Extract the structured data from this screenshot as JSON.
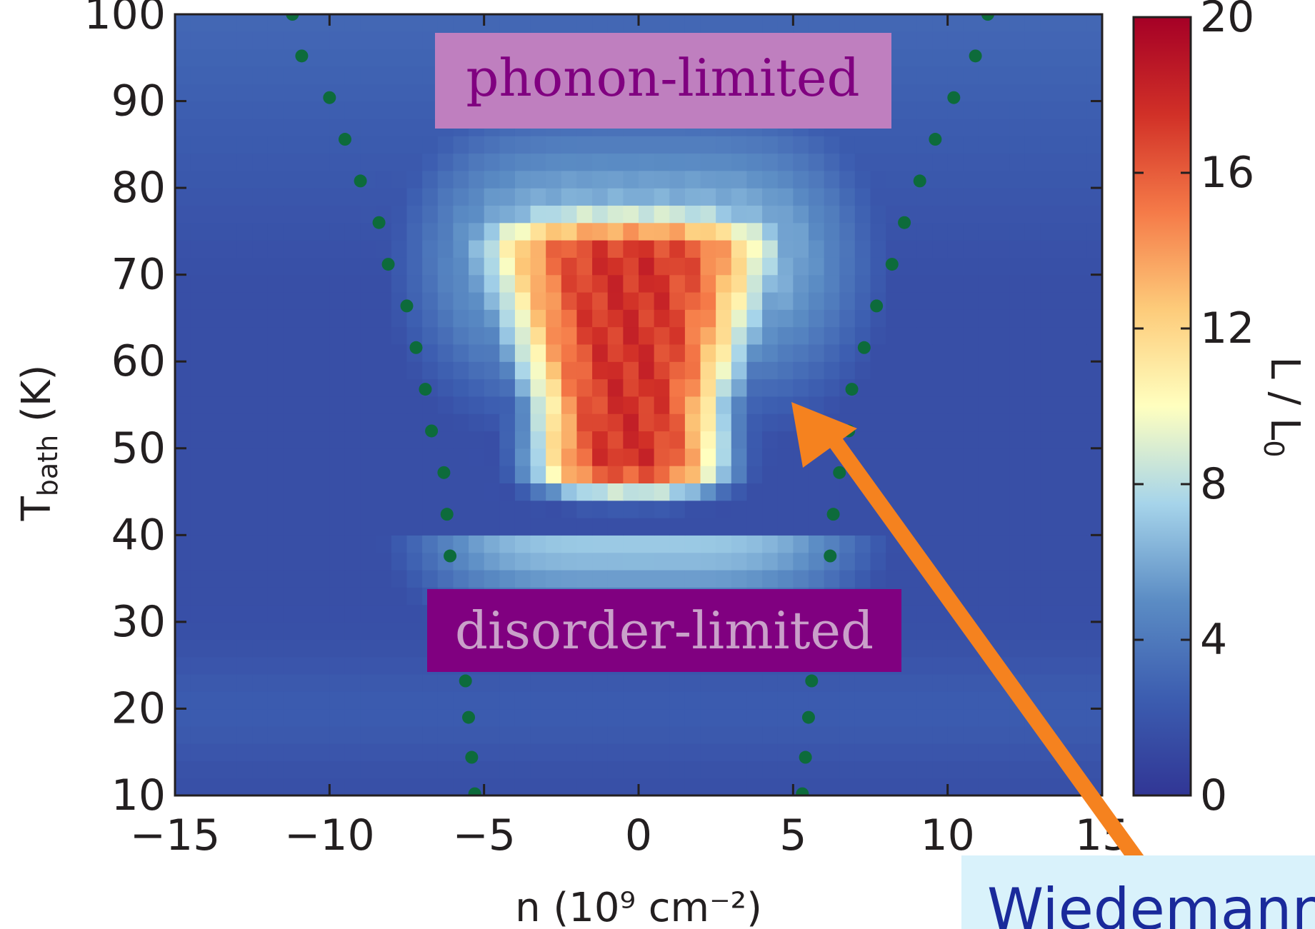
{
  "chart_data": {
    "type": "heatmap",
    "xlabel": "n (10⁹ cm⁻²)",
    "ylabel": "T_bath (K)",
    "ylabel_main": "T",
    "ylabel_sub": "bath",
    "ylabel_rest": " (K)",
    "colorbar_label": "L / L₀",
    "colorbar_label_main": "L / L",
    "colorbar_label_sub": "0",
    "xlim": [
      -15,
      15
    ],
    "ylim": [
      10,
      100
    ],
    "clim": [
      0,
      20
    ],
    "x_ticks": [
      -15,
      -10,
      -5,
      0,
      5,
      10,
      15
    ],
    "x_tick_labels": [
      "−15",
      "−10",
      "−5",
      "0",
      "5",
      "10",
      "15"
    ],
    "y_ticks": [
      10,
      20,
      30,
      40,
      50,
      60,
      70,
      80,
      90,
      100
    ],
    "y_tick_labels": [
      "10",
      "20",
      "30",
      "40",
      "50",
      "60",
      "70",
      "80",
      "90",
      "100"
    ],
    "colorbar_ticks": [
      0,
      4,
      8,
      12,
      16,
      20
    ],
    "colorbar_tick_labels": [
      "0",
      "4",
      "8",
      "12",
      "16",
      "20"
    ],
    "colormap": [
      "#313695",
      "#3c5db0",
      "#5b8cc4",
      "#a6d4ea",
      "#ffffbf",
      "#fdcb7a",
      "#f57a48",
      "#d13027",
      "#a50026"
    ],
    "region_labels": [
      {
        "text": "phonon-limited",
        "bg": "#bf7fbf",
        "fg": "#800080"
      },
      {
        "text": "disorder-limited",
        "bg": "#800080",
        "fg": "#c9a0c9"
      }
    ],
    "dots_left": [
      {
        "n": -11.2,
        "T": 100
      },
      {
        "n": -10.9,
        "T": 95.2
      },
      {
        "n": -10.0,
        "T": 90.4
      },
      {
        "n": -9.5,
        "T": 85.6
      },
      {
        "n": -9.0,
        "T": 80.8
      },
      {
        "n": -8.4,
        "T": 76.0
      },
      {
        "n": -8.1,
        "T": 71.2
      },
      {
        "n": -7.5,
        "T": 66.4
      },
      {
        "n": -7.2,
        "T": 61.6
      },
      {
        "n": -6.9,
        "T": 56.8
      },
      {
        "n": -6.7,
        "T": 52.0
      },
      {
        "n": -6.3,
        "T": 47.2
      },
      {
        "n": -6.2,
        "T": 42.4
      },
      {
        "n": -6.1,
        "T": 37.6
      },
      {
        "n": -5.9,
        "T": 32.8
      },
      {
        "n": -5.7,
        "T": 28.0
      },
      {
        "n": -5.6,
        "T": 23.2
      },
      {
        "n": -5.5,
        "T": 19.0
      },
      {
        "n": -5.4,
        "T": 14.4
      },
      {
        "n": -5.3,
        "T": 10.2
      }
    ],
    "dots_right": [
      {
        "n": 11.3,
        "T": 100
      },
      {
        "n": 10.9,
        "T": 95.2
      },
      {
        "n": 10.2,
        "T": 90.4
      },
      {
        "n": 9.6,
        "T": 85.6
      },
      {
        "n": 9.1,
        "T": 80.8
      },
      {
        "n": 8.6,
        "T": 76.0
      },
      {
        "n": 8.2,
        "T": 71.2
      },
      {
        "n": 7.7,
        "T": 66.4
      },
      {
        "n": 7.3,
        "T": 61.6
      },
      {
        "n": 6.9,
        "T": 56.8
      },
      {
        "n": 6.8,
        "T": 52.0
      },
      {
        "n": 6.5,
        "T": 47.2
      },
      {
        "n": 6.3,
        "T": 42.4
      },
      {
        "n": 6.2,
        "T": 37.6
      },
      {
        "n": 5.9,
        "T": 32.8
      },
      {
        "n": 5.7,
        "T": 28.0
      },
      {
        "n": 5.6,
        "T": 23.2
      },
      {
        "n": 5.5,
        "T": 19.0
      },
      {
        "n": 5.4,
        "T": 14.4
      },
      {
        "n": 5.3,
        "T": 10.2
      }
    ],
    "dot_color": "#0d6b3b",
    "arrow_color": "#f5821f",
    "callout_text": "Wiedemann",
    "callout_bg": "#d9f2fb",
    "callout_fg": "#1a2a9b"
  }
}
